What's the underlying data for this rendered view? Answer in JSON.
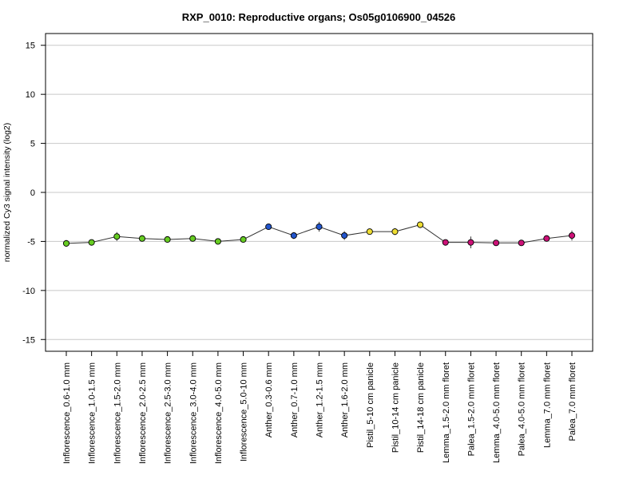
{
  "chart_data": {
    "type": "line",
    "title": "RXP_0010: Reproductive organs; Os05g0106900_04526",
    "xlabel": "",
    "ylabel": "normalized Cy3 signal intensity (log2)",
    "ylim": [
      -16.2,
      16.2
    ],
    "yticks": [
      15,
      10,
      5,
      0,
      -5,
      -10,
      -15
    ],
    "ytick_labels": [
      "15",
      "10",
      "5",
      "0",
      "-5",
      "-10",
      "-15"
    ],
    "grid": true,
    "categories": [
      "Inflorescence_0.6-1.0 mm",
      "Inflorescence_1.0-1.5 mm",
      "Inflorescence_1.5-2.0 mm",
      "Inflorescence_2.0-2.5 mm",
      "Inflorescence_2.5-3.0 mm",
      "Inflorescence_3.0-4.0 mm",
      "Inflorescence_4.0-5.0 mm",
      "Inflorescence_5.0-10 mm",
      "Anther_0.3-0.6 mm",
      "Anther_0.7-1.0 mm",
      "Anther_1.2-1.5 mm",
      "Anther_1.6-2.0 mm",
      "Pistil_5-10 cm panicle",
      "Pistil_10-14 cm panicle",
      "Pistil_14-18 cm panicle",
      "Lemma_1.5-2.0 mm floret",
      "Palea_1.5-2.0 mm floret",
      "Lemma_4.0-5.0 mm floret",
      "Palea_4.0-5.0 mm floret",
      "Lemma_7.0 mm floret",
      "Palea_7.0 mm floret"
    ],
    "values": [
      -5.2,
      -5.1,
      -4.5,
      -4.7,
      -4.8,
      -4.7,
      -5.0,
      -4.8,
      -3.5,
      -4.4,
      -3.5,
      -4.4,
      -4.0,
      -4.0,
      -3.3,
      -5.1,
      -5.1,
      -5.15,
      -5.15,
      -4.7,
      -4.4
    ],
    "error": [
      0.35,
      0.2,
      0.45,
      0.2,
      0.25,
      0.2,
      0.2,
      0.25,
      0.2,
      0.35,
      0.5,
      0.45,
      0.2,
      0.35,
      0.2,
      0.2,
      0.6,
      0.2,
      0.2,
      0.25,
      0.5
    ],
    "point_colors": [
      "#66cc22",
      "#66cc22",
      "#66cc22",
      "#66cc22",
      "#66cc22",
      "#66cc22",
      "#66cc22",
      "#66cc22",
      "#2255cc",
      "#2255cc",
      "#2255cc",
      "#2255cc",
      "#eedd33",
      "#eedd33",
      "#eedd33",
      "#cc1177",
      "#cc1177",
      "#cc1177",
      "#cc1177",
      "#cc1177",
      "#cc1177"
    ],
    "line_color": "#333333",
    "grid_color": "#c8c8c8"
  }
}
